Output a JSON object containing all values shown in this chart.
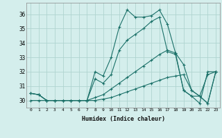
{
  "xlabel": "Humidex (Indice chaleur)",
  "x": [
    0,
    1,
    2,
    3,
    4,
    5,
    6,
    7,
    8,
    9,
    10,
    11,
    12,
    13,
    14,
    15,
    16,
    17,
    18,
    19,
    20,
    21,
    22,
    23
  ],
  "series": [
    [
      30.5,
      30.4,
      30.0,
      30.0,
      30.0,
      30.0,
      30.0,
      30.0,
      32.0,
      31.7,
      33.0,
      35.1,
      36.3,
      35.8,
      35.8,
      35.9,
      36.3,
      35.3,
      33.3,
      30.7,
      30.3,
      29.8,
      32.0,
      32.0
    ],
    [
      30.5,
      30.4,
      30.0,
      30.0,
      30.0,
      30.0,
      30.0,
      30.0,
      31.5,
      31.2,
      31.8,
      33.5,
      34.2,
      34.6,
      35.0,
      35.5,
      35.8,
      33.4,
      33.2,
      30.7,
      30.3,
      30.3,
      31.8,
      32.0
    ],
    [
      30.5,
      30.4,
      30.0,
      30.0,
      30.0,
      30.0,
      30.0,
      30.0,
      30.2,
      30.4,
      30.8,
      31.2,
      31.6,
      32.0,
      32.4,
      32.8,
      33.2,
      33.5,
      33.3,
      32.5,
      30.7,
      30.3,
      29.8,
      32.0
    ],
    [
      30.0,
      30.0,
      30.0,
      30.0,
      30.0,
      30.0,
      30.0,
      30.0,
      30.0,
      30.1,
      30.2,
      30.4,
      30.6,
      30.8,
      31.0,
      31.2,
      31.4,
      31.6,
      31.7,
      31.8,
      30.7,
      30.3,
      29.8,
      32.0
    ]
  ],
  "line_color": "#1a7068",
  "bg_color": "#d4eeec",
  "grid_color": "#b0d4d0",
  "ylim": [
    29.5,
    36.8
  ],
  "yticks": [
    30,
    31,
    32,
    33,
    34,
    35,
    36
  ],
  "xlim": [
    -0.5,
    23.5
  ]
}
